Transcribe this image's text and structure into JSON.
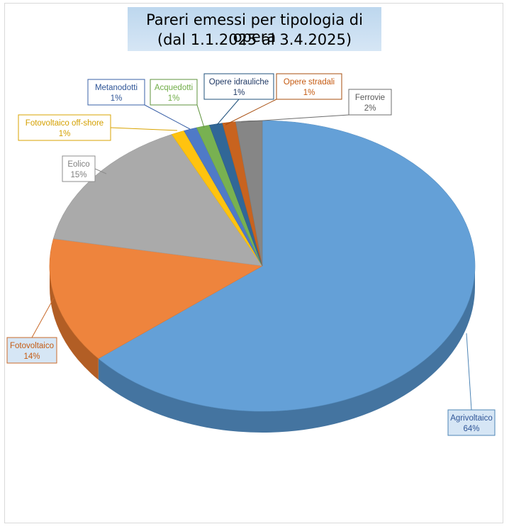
{
  "chart_data": {
    "type": "pie",
    "title_line1": "Pareri emessi per tipologia di opera",
    "title_line2": "(dal 1.1.2025 al 3.4.2025)",
    "slices": [
      {
        "label": "Agrivoltaico",
        "label_parts": [
          "Agrivoltaico"
        ],
        "value": 64,
        "percent": "64%",
        "color": "#5b9bd5",
        "label_color": "#2f5597",
        "label_bg": "#d6e6f5"
      },
      {
        "label": "Fotovoltaico",
        "label_parts": [
          "Fotovoltaico"
        ],
        "value": 14,
        "percent": "14%",
        "color": "#ed7d31",
        "label_color": "#c55a11",
        "label_bg": "#d6e6f5"
      },
      {
        "label": "Eolico",
        "label_parts": [
          "Eolico"
        ],
        "value": 15,
        "percent": "15%",
        "color": "#a5a5a5",
        "label_color": "#7f7f7f",
        "label_bg": "#ffffff"
      },
      {
        "label": "Fotovoltaico off-shore",
        "label_parts": [
          "Fotovoltaico",
          " off-shore"
        ],
        "value": 1,
        "percent": "1%",
        "color": "#ffc000",
        "label_color": "#d4a000",
        "label_bg": "#ffffff"
      },
      {
        "label": "Metanodotti",
        "label_parts": [
          "Metanodotti"
        ],
        "value": 1,
        "percent": "1%",
        "color": "#4472c4",
        "label_color": "#2f5597",
        "label_bg": "#ffffff"
      },
      {
        "label": "Acquedotti",
        "label_parts": [
          "Acquedotti"
        ],
        "value": 1,
        "percent": "1%",
        "color": "#70ad47",
        "label_color": "#70ad47",
        "label_bg": "#ffffff"
      },
      {
        "label": "Opere idrauliche",
        "label_parts": [
          "Opere idrauliche"
        ],
        "value": 1,
        "percent": "1%",
        "color": "#255e91",
        "label_color": "#1f3864",
        "label_bg": "#ffffff"
      },
      {
        "label": "Opere stradali",
        "label_parts": [
          "Opere stradali"
        ],
        "value": 1,
        "percent": "1%",
        "color": "#c55a11",
        "label_color": "#c55a11",
        "label_bg": "#ffffff"
      },
      {
        "label": "Ferrovie",
        "label_parts": [
          "Ferrovie"
        ],
        "value": 2,
        "percent": "2%",
        "color": "#7f7f7f",
        "label_color": "#595959",
        "label_bg": "#ffffff"
      }
    ]
  }
}
